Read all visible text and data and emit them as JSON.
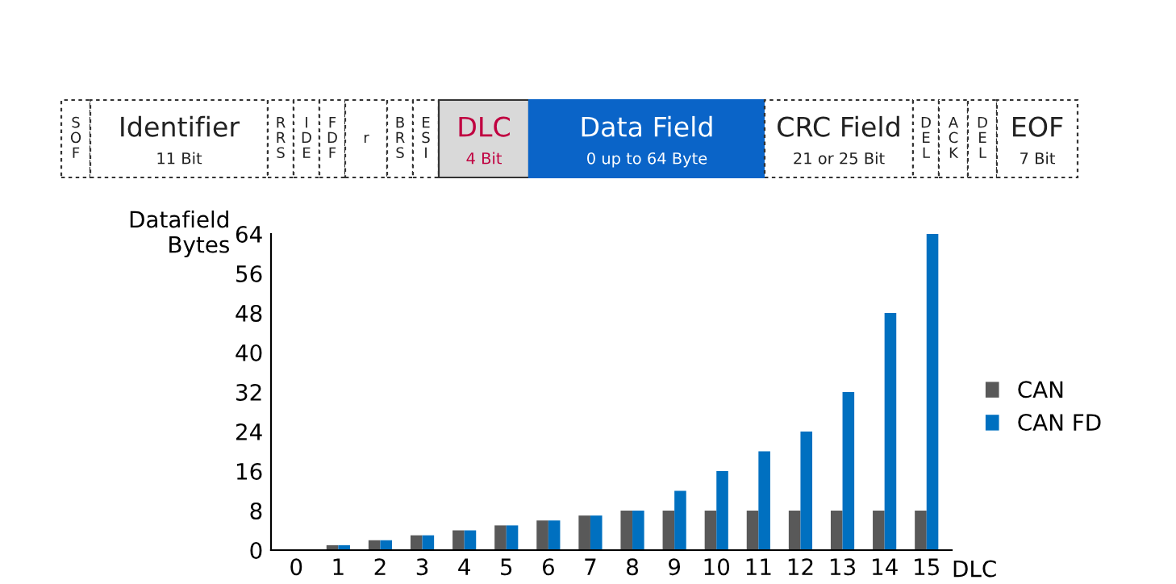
{
  "chart_data": {
    "type": "bar",
    "annotations": [
      "S\nO\nF",
      "Identifier\n11 Bit",
      "R\nR\nS",
      "I\nD\nE",
      "F\nD\nF",
      "r",
      "B\nR\nS",
      "E\nS\nI",
      "DLC\n4 Bit",
      "Data Field\n0 up to 64 Byte",
      "CRC Field\n21 or 25 Bit",
      "D\nE\nL",
      "A\nC\nK",
      "D\nE\nL",
      "EOF\n7 Bit"
    ],
    "categories": [
      "0",
      "1",
      "2",
      "3",
      "4",
      "5",
      "6",
      "7",
      "8",
      "9",
      "10",
      "11",
      "12",
      "13",
      "14",
      "15"
    ],
    "series": [
      {
        "name": "CAN",
        "color": "#595959",
        "values": [
          0,
          1,
          2,
          3,
          4,
          5,
          6,
          7,
          8,
          8,
          8,
          8,
          8,
          8,
          8,
          8
        ]
      },
      {
        "name": "CAN FD",
        "color": "#0070c0",
        "values": [
          0,
          1,
          2,
          3,
          4,
          5,
          6,
          7,
          8,
          12,
          16,
          20,
          24,
          32,
          48,
          64
        ]
      }
    ],
    "xlabel": "DLC",
    "ylabel": "Datafield\nBytes",
    "ylim": [
      0,
      64
    ],
    "yticks": [
      0,
      8,
      16,
      24,
      32,
      40,
      48,
      56,
      64
    ],
    "legend": "right",
    "grid": false
  }
}
